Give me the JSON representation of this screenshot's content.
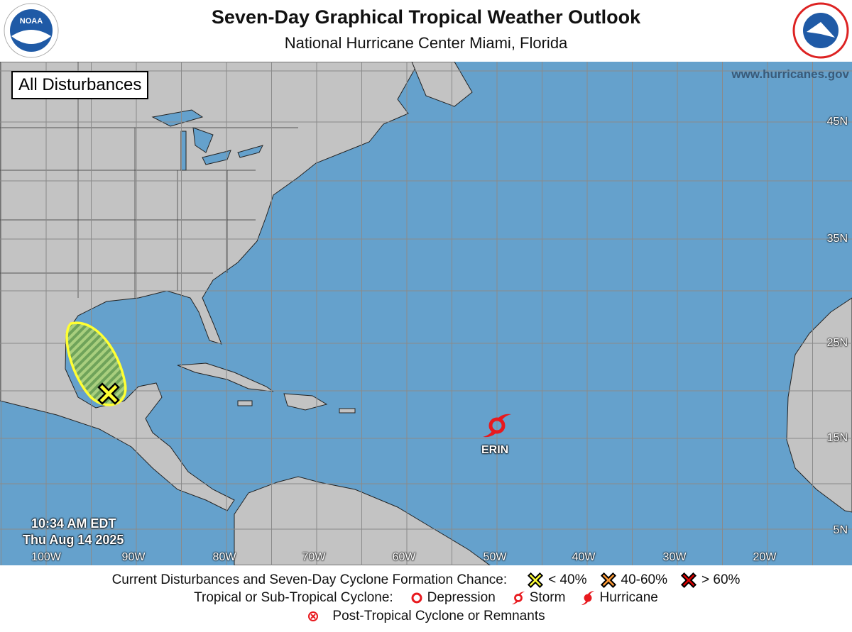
{
  "header": {
    "title": "Seven-Day Graphical Tropical Weather Outlook",
    "subtitle": "National Hurricane Center  Miami, Florida"
  },
  "logos": {
    "left": "NOAA",
    "right": "NATIONAL WEATHER SERVICE"
  },
  "map": {
    "view_label": "All Disturbances",
    "website": "www.hurricanes.gov",
    "latitude_labels": [
      "45N",
      "35N",
      "25N",
      "15N",
      "5N"
    ],
    "longitude_labels": [
      "100W",
      "90W",
      "80W",
      "70W",
      "60W",
      "50W",
      "40W",
      "30W",
      "20W"
    ],
    "issued_time": "10:34 AM EDT",
    "issued_date": "Thu Aug 14 2025",
    "colors": {
      "ocean": "#65a1cc",
      "land": "#c3c3c3",
      "low_chance": "#ffff33",
      "medium_chance": "#ff9933",
      "high_chance": "#dd0000",
      "cyclone": "#e8191e"
    },
    "systems": [
      {
        "type": "disturbance",
        "chance": "< 40%",
        "color": "#ffff33",
        "icon": "x-marker"
      },
      {
        "type": "storm",
        "name": "ERIN",
        "icon": "tropical-storm-icon"
      }
    ]
  },
  "legend": {
    "row1_label": "Current Disturbances and Seven-Day Cyclone Formation Chance:",
    "low": "< 40%",
    "medium": "40-60%",
    "high": "> 60%",
    "row2_label": "Tropical or Sub-Tropical Cyclone:",
    "depression": "Depression",
    "storm": "Storm",
    "hurricane": "Hurricane",
    "post_tropical": "Post-Tropical Cyclone or Remnants"
  }
}
